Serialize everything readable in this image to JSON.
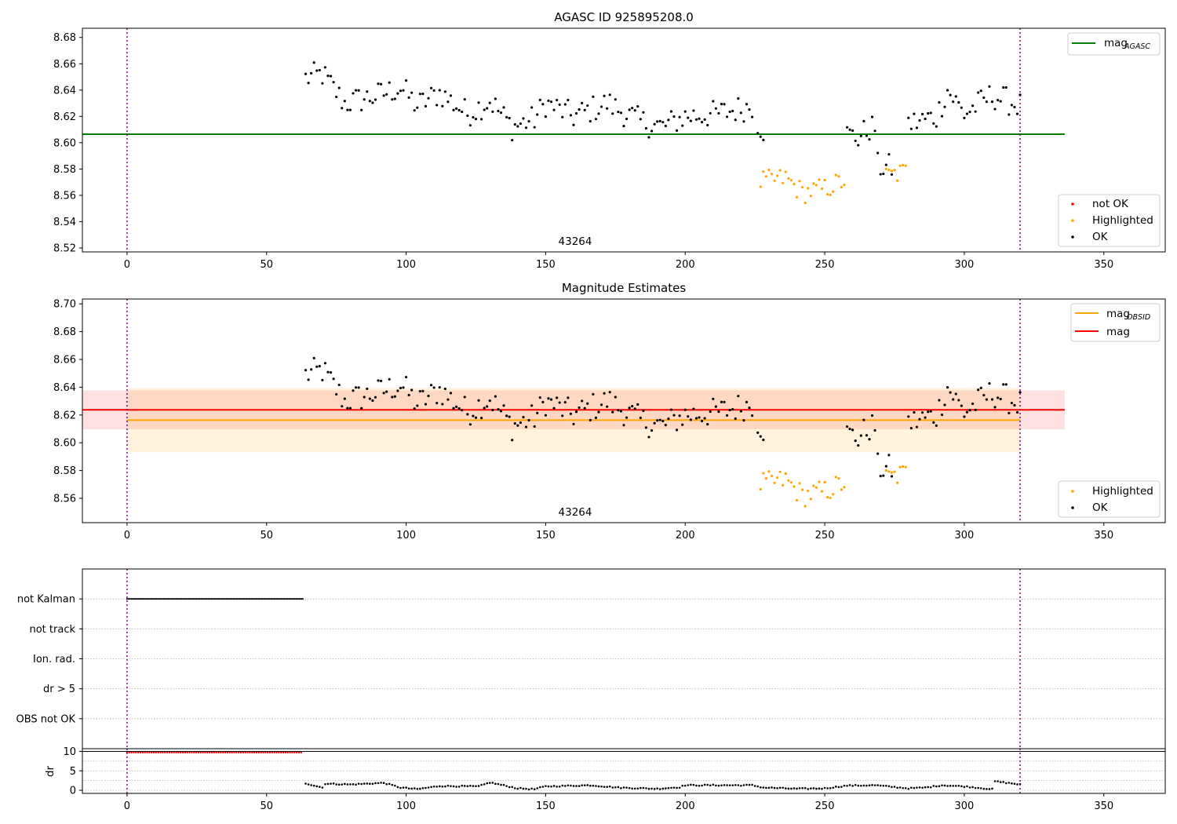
{
  "colors": {
    "ok": "#000000",
    "highlighted": "#ffa500",
    "not_ok": "#ff0000",
    "mag_agasc": "#008000",
    "mag_obsid": "#ffa500",
    "mag": "#ff0000",
    "obs_window": "#800080",
    "dr_threshold": "#000000"
  },
  "chart_data": [
    {
      "type": "scatter",
      "title": "AGASC ID 925895208.0",
      "annotation": "43264",
      "xlim": [
        -16,
        372
      ],
      "ylim": [
        8.517,
        8.687
      ],
      "xticks": [
        "0",
        "50",
        "100",
        "150",
        "200",
        "250",
        "300",
        "350"
      ],
      "yticks": [
        "8.52",
        "8.54",
        "8.56",
        "8.58",
        "8.60",
        "8.62",
        "8.64",
        "8.66",
        "8.68"
      ],
      "observation_window": [
        0,
        320
      ],
      "legend_top": [
        {
          "label_main": "mag",
          "label_sub": "AGASC",
          "style": "line",
          "color_key": "mag_agasc"
        }
      ],
      "legend_bottom": [
        {
          "label": "not OK",
          "style": "point",
          "color_key": "not_ok"
        },
        {
          "label": "Highlighted",
          "style": "point",
          "color_key": "highlighted"
        },
        {
          "label": "OK",
          "style": "point",
          "color_key": "ok"
        }
      ],
      "lines": [
        {
          "name": "mag_AGASC",
          "y": 8.6065,
          "x": [
            -16,
            336
          ]
        }
      ],
      "bands": [],
      "series": [
        {
          "name": "OK",
          "color_key": "ok",
          "segments": [
            {
              "x0": 64,
              "x1": 224,
              "step": 1,
              "start": 8.649,
              "trend": [
                [
                  64,
                  8.649
                ],
                [
                  70,
                  8.652
                ],
                [
                  78,
                  8.63
                ],
                [
                  90,
                  8.636
                ],
                [
                  98,
                  8.642
                ],
                [
                  104,
                  8.628
                ],
                [
                  112,
                  8.638
                ],
                [
                  122,
                  8.622
                ],
                [
                  130,
                  8.632
                ],
                [
                  138,
                  8.612
                ],
                [
                  146,
                  8.618
                ],
                [
                  150,
                  8.63
                ],
                [
                  160,
                  8.62
                ],
                [
                  172,
                  8.63
                ],
                [
                  184,
                  8.616
                ],
                [
                  192,
                  8.612
                ],
                [
                  200,
                  8.62
                ],
                [
                  212,
                  8.622
                ],
                [
                  224,
                  8.628
                ]
              ]
            },
            {
              "x0": 226,
              "x1": 228,
              "step": 1,
              "trend": [
                [
                  226,
                  8.615
                ],
                [
                  228,
                  8.61
                ]
              ]
            },
            {
              "x0": 258,
              "x1": 268,
              "step": 1,
              "trend": [
                [
                  258,
                  8.606
                ],
                [
                  262,
                  8.604
                ],
                [
                  266,
                  8.611
                ],
                [
                  268,
                  8.612
                ]
              ]
            },
            {
              "x0": 269,
              "x1": 274,
              "step": 1,
              "trend": [
                [
                  269,
                  8.582
                ],
                [
                  274,
                  8.581
                ]
              ]
            },
            {
              "x0": 280,
              "x1": 320,
              "step": 1,
              "trend": [
                [
                  280,
                  8.614
                ],
                [
                  290,
                  8.62
                ],
                [
                  294,
                  8.64
                ],
                [
                  300,
                  8.622
                ],
                [
                  310,
                  8.636
                ],
                [
                  320,
                  8.628
                ]
              ]
            }
          ]
        },
        {
          "name": "Highlighted",
          "color_key": "highlighted",
          "segments": [
            {
              "x0": 227,
              "x1": 257,
              "step": 1,
              "trend": [
                [
                  227,
                  8.57
                ],
                [
                  236,
                  8.573
                ],
                [
                  242,
                  8.562
                ],
                [
                  250,
                  8.565
                ],
                [
                  257,
                  8.571
                ]
              ]
            },
            {
              "x0": 272,
              "x1": 279,
              "step": 1,
              "trend": [
                [
                  272,
                  8.574
                ],
                [
                  279,
                  8.578
                ]
              ]
            }
          ]
        },
        {
          "name": "not OK",
          "color_key": "not_ok",
          "segments": []
        }
      ]
    },
    {
      "type": "scatter",
      "title": "Magnitude Estimates",
      "annotation": "43264",
      "xlim": [
        -16,
        372
      ],
      "ylim": [
        8.5425,
        8.7035
      ],
      "xticks": [
        "0",
        "50",
        "100",
        "150",
        "200",
        "250",
        "300",
        "350"
      ],
      "yticks": [
        "8.56",
        "8.58",
        "8.60",
        "8.62",
        "8.64",
        "8.66",
        "8.68",
        "8.70"
      ],
      "observation_window": [
        0,
        320
      ],
      "legend_top": [
        {
          "label_main": "mag",
          "label_sub": "OBSID",
          "style": "line",
          "color_key": "mag_obsid"
        },
        {
          "label_main": "mag",
          "label_sub": "",
          "style": "line",
          "color_key": "mag"
        }
      ],
      "legend_bottom": [
        {
          "label": "Highlighted",
          "style": "point",
          "color_key": "highlighted"
        },
        {
          "label": "OK",
          "style": "point",
          "color_key": "ok"
        }
      ],
      "lines": [
        {
          "name": "mag",
          "y": 8.6237,
          "x": [
            -16,
            336
          ],
          "color_key": "mag"
        },
        {
          "name": "mag_OBSID",
          "y": 8.6163,
          "x": [
            0,
            320
          ],
          "color_key": "mag_obsid"
        }
      ],
      "bands": [
        {
          "name": "mag",
          "y0": 8.6097,
          "y1": 8.6377,
          "x": [
            -16,
            336
          ],
          "color_key": "mag",
          "opacity": 0.12
        },
        {
          "name": "mag_OBSID",
          "y0": 8.5933,
          "y1": 8.6393,
          "x": [
            0,
            320
          ],
          "color_key": "mag_obsid",
          "opacity": 0.13
        }
      ],
      "series": "same_as_panel_1"
    },
    {
      "type": "scatter",
      "title": "",
      "xlim": [
        -16,
        372
      ],
      "categories": [
        "not Kalman",
        "not track",
        "Ion. rad.",
        "dr > 5",
        "OBS not OK"
      ],
      "observation_window": [
        0,
        320
      ],
      "flags": [
        {
          "category": "not Kalman",
          "x0": 0,
          "x1": 63,
          "step": 0.5
        }
      ]
    },
    {
      "type": "scatter",
      "title": "",
      "ylabel": "dr",
      "xlim": [
        -16,
        372
      ],
      "ylim": [
        -0.8,
        10.7
      ],
      "yticks": [
        "0",
        "5",
        "10"
      ],
      "xticks": [
        "0",
        "50",
        "100",
        "150",
        "200",
        "250",
        "300",
        "350"
      ],
      "observation_window": [
        0,
        320
      ],
      "threshold_line": 10.0,
      "series": [
        {
          "name": "not OK",
          "color_key": "not_ok",
          "x0": 0,
          "x1": 63,
          "step": 0.8,
          "y": 9.7
        },
        {
          "name": "OK",
          "color_key": "ok",
          "x0": 64,
          "x1": 320,
          "step": 1,
          "trend": [
            [
              64,
              1.8
            ],
            [
              70,
              0.7
            ],
            [
              71,
              1.7
            ],
            [
              80,
              1.5
            ],
            [
              92,
              1.9
            ],
            [
              98,
              0.7
            ],
            [
              104,
              0.3
            ],
            [
              112,
              1.1
            ],
            [
              126,
              1.0
            ],
            [
              130,
              2.0
            ],
            [
              140,
              0.5
            ],
            [
              146,
              0.3
            ],
            [
              150,
              1.0
            ],
            [
              166,
              1.3
            ],
            [
              176,
              0.7
            ],
            [
              190,
              0.4
            ],
            [
              198,
              0.8
            ],
            [
              200,
              1.3
            ],
            [
              224,
              1.3
            ],
            [
              228,
              0.7
            ],
            [
              240,
              0.4
            ],
            [
              250,
              0.5
            ],
            [
              258,
              1.2
            ],
            [
              268,
              1.3
            ],
            [
              280,
              0.5
            ],
            [
              286,
              0.7
            ],
            [
              292,
              1.3
            ],
            [
              300,
              1.0
            ],
            [
              310,
              0.3
            ],
            [
              311,
              2.3
            ],
            [
              320,
              1.5
            ]
          ]
        }
      ]
    }
  ]
}
